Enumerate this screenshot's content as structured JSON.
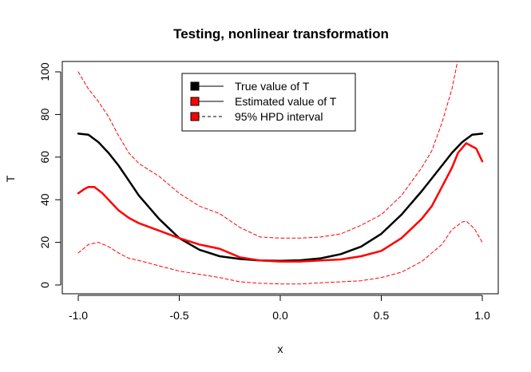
{
  "chart_data": {
    "type": "line",
    "title": "Testing, nonlinear transformation",
    "xlabel": "x",
    "ylabel": "T",
    "xlim": [
      -1.0,
      1.0
    ],
    "ylim": [
      0,
      100
    ],
    "grid": false,
    "legend_position": "top-center",
    "x_ticks": [
      {
        "value": -1.0,
        "label": "-1.0"
      },
      {
        "value": -0.5,
        "label": "-0.5"
      },
      {
        "value": 0.0,
        "label": "0.0"
      },
      {
        "value": 0.5,
        "label": "0.5"
      },
      {
        "value": 1.0,
        "label": "1.0"
      }
    ],
    "y_ticks": [
      {
        "value": 0,
        "label": "0"
      },
      {
        "value": 20,
        "label": "20"
      },
      {
        "value": 40,
        "label": "40"
      },
      {
        "value": 60,
        "label": "60"
      },
      {
        "value": 80,
        "label": "80"
      },
      {
        "value": 100,
        "label": "100"
      }
    ],
    "series": [
      {
        "name": "True value of T",
        "color": "#000000",
        "style": "solid",
        "width": 2.5,
        "x": [
          -1.0,
          -0.95,
          -0.9,
          -0.85,
          -0.8,
          -0.75,
          -0.7,
          -0.6,
          -0.5,
          -0.4,
          -0.3,
          -0.2,
          -0.1,
          0.0,
          0.1,
          0.2,
          0.3,
          0.4,
          0.5,
          0.6,
          0.7,
          0.8,
          0.85,
          0.9,
          0.95,
          1.0
        ],
        "values": [
          71,
          70.5,
          67,
          62,
          56,
          49,
          42,
          31,
          22,
          16.5,
          13.5,
          12.2,
          11.5,
          11.3,
          11.6,
          12.5,
          14.5,
          18,
          24,
          33,
          44,
          56,
          62,
          67,
          70.5,
          71
        ]
      },
      {
        "name": "Estimated value of T",
        "color": "#ff0000",
        "style": "solid",
        "width": 2.5,
        "x": [
          -1.0,
          -0.97,
          -0.95,
          -0.92,
          -0.88,
          -0.85,
          -0.8,
          -0.75,
          -0.7,
          -0.6,
          -0.5,
          -0.4,
          -0.3,
          -0.2,
          -0.1,
          0.0,
          0.1,
          0.2,
          0.3,
          0.4,
          0.5,
          0.6,
          0.7,
          0.75,
          0.8,
          0.85,
          0.88,
          0.92,
          0.97,
          1.0
        ],
        "values": [
          43,
          45,
          46,
          46,
          43,
          40,
          35,
          31.5,
          29,
          25.5,
          22,
          19,
          17,
          13,
          11.5,
          11,
          11,
          11.5,
          12,
          13.5,
          16,
          22,
          31,
          37,
          46,
          55,
          62,
          66.5,
          64,
          58
        ]
      },
      {
        "name": "95% HPD interval",
        "color": "#ff0000",
        "style": "dashed",
        "width": 1,
        "x": [
          -1.0,
          -0.95,
          -0.9,
          -0.85,
          -0.8,
          -0.75,
          -0.7,
          -0.6,
          -0.5,
          -0.4,
          -0.3,
          -0.2,
          -0.1,
          0.0,
          0.1,
          0.2,
          0.3,
          0.4,
          0.5,
          0.6,
          0.7,
          0.75,
          0.8,
          0.85,
          0.88
        ],
        "values": [
          100,
          92,
          86,
          79,
          70,
          62,
          57,
          51,
          43,
          37,
          33.5,
          27,
          22.5,
          22,
          22,
          22.5,
          24,
          28,
          33,
          42,
          55,
          63,
          76,
          92,
          106
        ],
        "legend": false
      },
      {
        "name": "95% HPD interval (lower)",
        "color": "#ff0000",
        "style": "dashed",
        "width": 1,
        "x": [
          -1.0,
          -0.95,
          -0.9,
          -0.85,
          -0.8,
          -0.75,
          -0.7,
          -0.6,
          -0.5,
          -0.4,
          -0.3,
          -0.2,
          -0.1,
          0.0,
          0.1,
          0.2,
          0.3,
          0.4,
          0.5,
          0.6,
          0.7,
          0.8,
          0.85,
          0.9,
          0.92,
          0.96,
          1.0
        ],
        "values": [
          15,
          19,
          20,
          18,
          15,
          12.5,
          11.5,
          9,
          6.5,
          5,
          3.5,
          1.5,
          0.8,
          0.5,
          0.5,
          1,
          1.5,
          2,
          3.5,
          6,
          11,
          19,
          26,
          29.5,
          30,
          26.5,
          20
        ],
        "legend": false
      }
    ],
    "legend": [
      {
        "label": "True value of T",
        "swatch_color": "#000000",
        "line_color": "#000000",
        "line_style": "solid"
      },
      {
        "label": "Estimated value of T",
        "swatch_color": "#ff0000",
        "line_color": "#000000",
        "line_style": "solid"
      },
      {
        "label": "95% HPD interval",
        "swatch_color": "#ff0000",
        "line_color": "#000000",
        "line_style": "dashed"
      }
    ]
  }
}
